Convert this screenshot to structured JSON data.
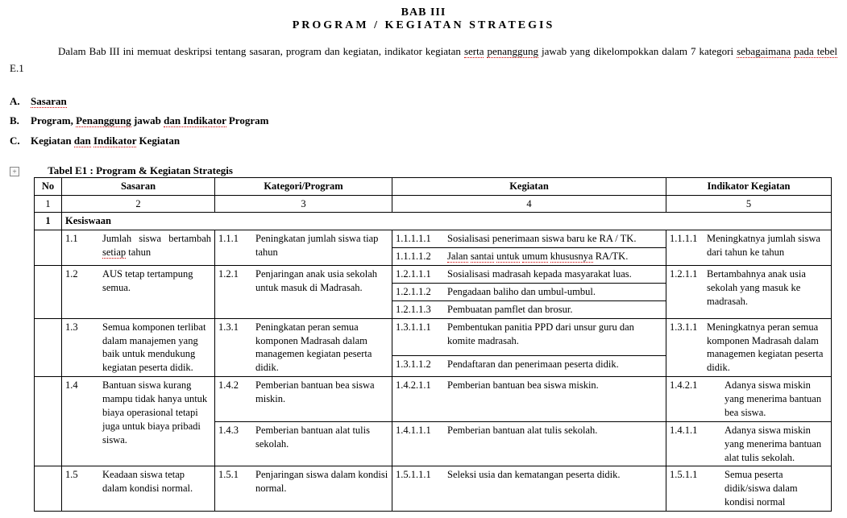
{
  "header": {
    "bab": "BAB III",
    "title": "PROGRAM  / KEGIATAN  STRATEGIS"
  },
  "paragraph": {
    "p1a": "Dalam Bab III ini memuat deskripsi tentang sasaran, program dan kegiatan, indikator kegiatan ",
    "p1b_err": "serta",
    "p1c": " ",
    "p1d_err": "penanggung",
    "p1e": " jawab yang dikelompokkan dalam 7 kategori ",
    "p1f_err": "sebagaimana",
    "p1g": " ",
    "p1h_err": "pada tebel",
    "p1i": " E.1"
  },
  "list": {
    "a_marker": "A.",
    "a_text_err": "Sasaran",
    "b_marker": "B.",
    "b_text1": "Program, ",
    "b_text2_err": "Penanggung",
    "b_text3": " jawab ",
    "b_text4_err": "dan Indikator",
    "b_text5": " Program",
    "c_marker": "C.",
    "c_text1": "Kegiatan ",
    "c_text2_err": "dan",
    "c_text3": " ",
    "c_text4_err": "Indikator",
    "c_text5": " Kegiatan"
  },
  "table_label": "Tabel E1 : Program & Kegiatan Strategis",
  "columns": {
    "no": "No",
    "sasaran": "Sasaran",
    "kategori": "Kategori/Program",
    "kegiatan": "Kegiatan",
    "indikator": "Indikator Kegiatan"
  },
  "colnums": {
    "c1": "1",
    "c2": "2",
    "c3": "3",
    "c4": "4",
    "c5": "5"
  },
  "section": {
    "no": "1",
    "title": "Kesiswaan"
  },
  "r1": {
    "sas_num": "1.1",
    "sas_txt_a": "Jumlah siswa bertambah ",
    "sas_txt_b_err": "setiap",
    "sas_txt_c": " tahun",
    "kat_num": "1.1.1",
    "kat_txt": "Peningkatan jumlah siswa tiap tahun",
    "keg1_num": "1.1.1.1.1",
    "keg1_txt": "Sosialisasi penerimaan siswa baru ke RA / TK.",
    "keg2_num": "1.1.1.1.2",
    "keg2_txt_a_err": "Jalan",
    "keg2_txt_b": " ",
    "keg2_txt_c_err": "santai",
    "keg2_txt_d": " ",
    "keg2_txt_e_err": "untuk",
    "keg2_txt_f": " ",
    "keg2_txt_g_err": "umum",
    "keg2_txt_h": " ",
    "keg2_txt_i_err": "khususnya",
    "keg2_txt_j": " RA/TK.",
    "ind_num": "1.1.1.1",
    "ind_txt": "Meningkatnya jumlah siswa dari tahun ke tahun"
  },
  "r2": {
    "sas_num": "1.2",
    "sas_txt": "AUS tetap tertampung semua.",
    "kat_num": "1.2.1",
    "kat_txt": "Penjaringan anak usia sekolah untuk masuk di Madrasah.",
    "keg1_num": "1.2.1.1.1",
    "keg1_txt": "Sosialisasi madrasah kepada masyarakat luas.",
    "keg2_num": "1.2.1.1.2",
    "keg2_txt": "Pengadaan baliho dan umbul-umbul.",
    "keg3_num": "1.2.1.1.3",
    "keg3_txt": "Pembuatan pamflet dan brosur.",
    "ind_num": "1.2.1.1",
    "ind_txt": "Bertambahnya anak usia sekolah yang masuk ke madrasah."
  },
  "r3": {
    "sas_num": "1.3",
    "sas_txt": "Semua komponen terlibat dalam manajemen yang baik untuk mendukung kegiatan peserta didik.",
    "kat_num": "1.3.1",
    "kat_txt": "Peningkatan peran semua komponen Madrasah dalam managemen kegiatan peserta didik.",
    "keg1_num": "1.3.1.1.1",
    "keg1_txt": "Pembentukan panitia PPD dari unsur guru dan komite madrasah.",
    "keg2_num": "1.3.1.1.2",
    "keg2_txt": "Pendaftaran dan penerimaan peserta didik.",
    "ind_num": "1.3.1.1",
    "ind_txt": "Meningkatnya peran semua komponen Madrasah dalam managemen kegiatan peserta didik."
  },
  "r4": {
    "sas_num": "1.4",
    "sas_txt": "Bantuan siswa kurang mampu tidak hanya untuk biaya operasional tetapi juga untuk biaya pribadi siswa.",
    "kat1_num": "1.4.2",
    "kat1_txt": "Pemberian bantuan bea siswa miskin.",
    "kat2_num": "1.4.3",
    "kat2_txt": "Pemberian bantuan alat tulis sekolah.",
    "keg1_num": "1.4.2.1.1",
    "keg1_txt": "Pemberian bantuan bea siswa miskin.",
    "keg2_num": "1.4.1.1.1",
    "keg2_txt": "Pemberian bantuan alat tulis sekolah.",
    "ind1_num": "1.4.2.1",
    "ind1_txt": "Adanya siswa miskin yang menerima bantuan bea siswa.",
    "ind2_num": "1.4.1.1",
    "ind2_txt": "Adanya siswa miskin yang menerima bantuan alat tulis sekolah."
  },
  "r5": {
    "sas_num": "1.5",
    "sas_txt": "Keadaan siswa tetap dalam kondisi normal.",
    "kat_num": "1.5.1",
    "kat_txt": "Penjaringan siswa dalam kondisi normal.",
    "keg_num": "1.5.1.1.1",
    "keg_txt": "Seleksi usia dan kematangan peserta didik.",
    "ind_num": "1.5.1.1",
    "ind_txt": "Semua peserta didik/siswa dalam kondisi normal"
  }
}
